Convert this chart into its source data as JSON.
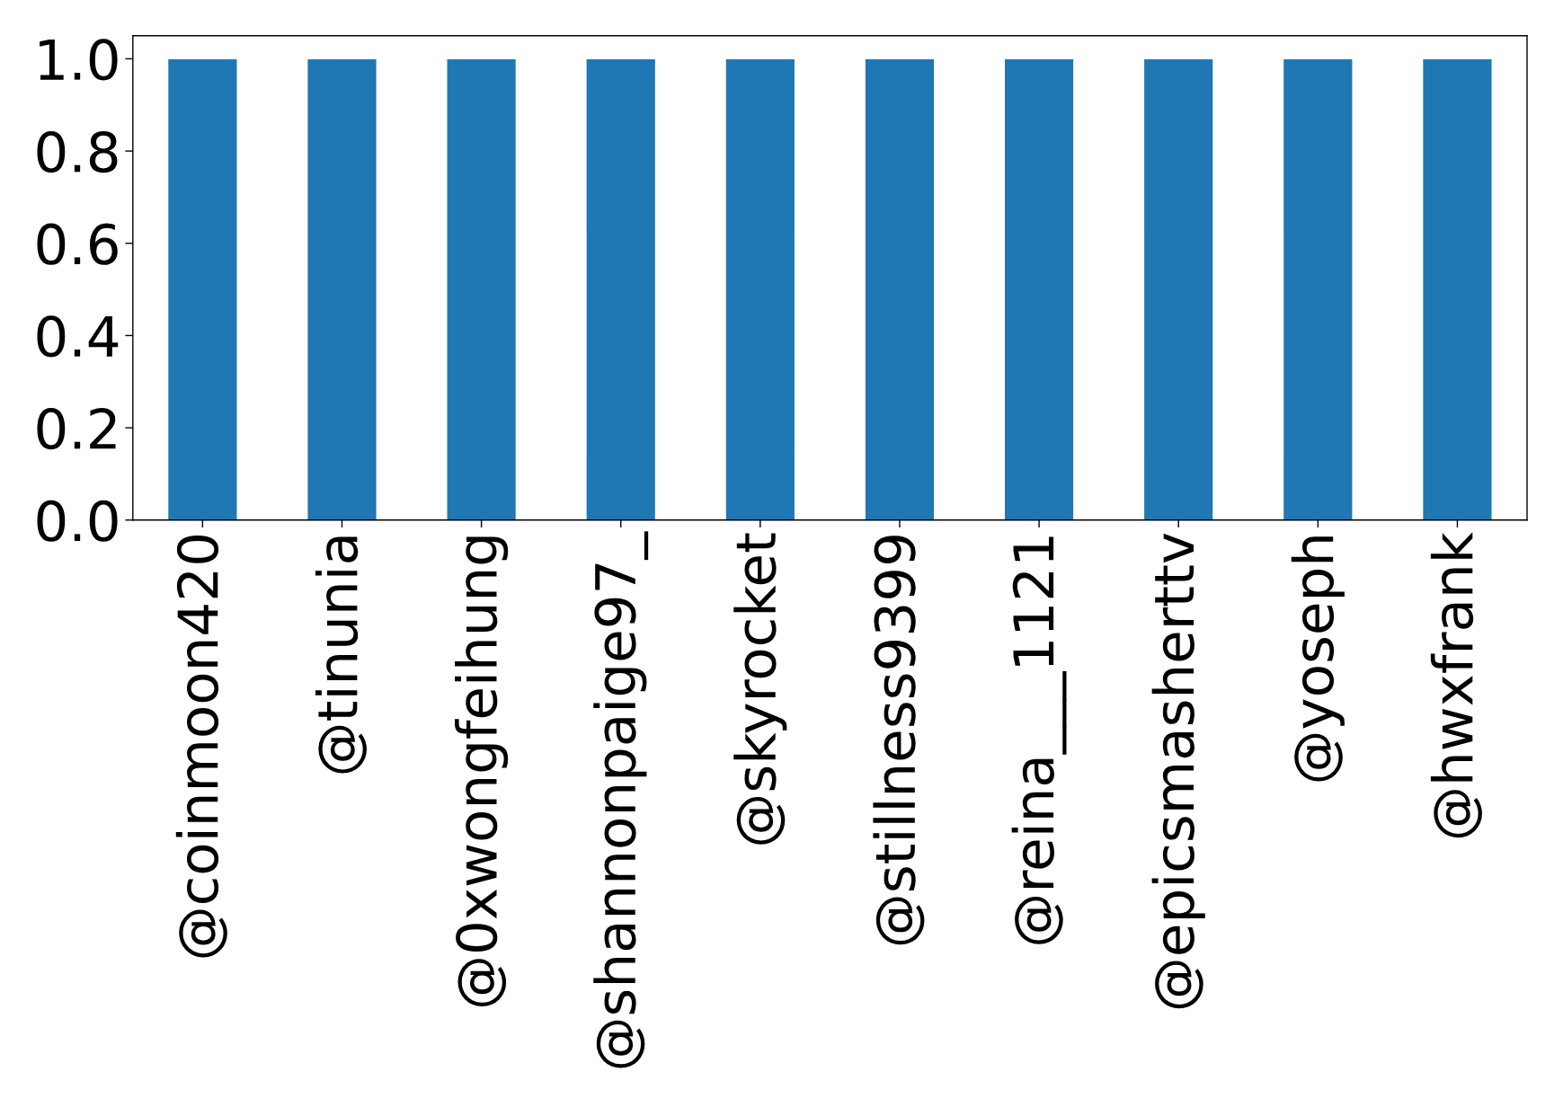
{
  "chart_data": {
    "type": "bar",
    "categories": [
      "@coinmoon420",
      "@tinunia",
      "@0xwongfeihung",
      "@shannonpaige97_",
      "@skyrocket",
      "@stillness9399",
      "@reina___1121",
      "@epicsmasherttv",
      "@yoseph",
      "@hwxfrank"
    ],
    "values": [
      1,
      1,
      1,
      1,
      1,
      1,
      1,
      1,
      1,
      1
    ],
    "color": "#1f77b4",
    "ylim": [
      0,
      1.05
    ],
    "yticks": [
      {
        "value": 0,
        "label": "0.0"
      },
      {
        "value": 0.2,
        "label": "0.2"
      },
      {
        "value": 0.4,
        "label": "0.4"
      },
      {
        "value": 0.6,
        "label": "0.6"
      },
      {
        "value": 0.8,
        "label": "0.8"
      },
      {
        "value": 1,
        "label": "1.0"
      }
    ],
    "grid": false
  }
}
